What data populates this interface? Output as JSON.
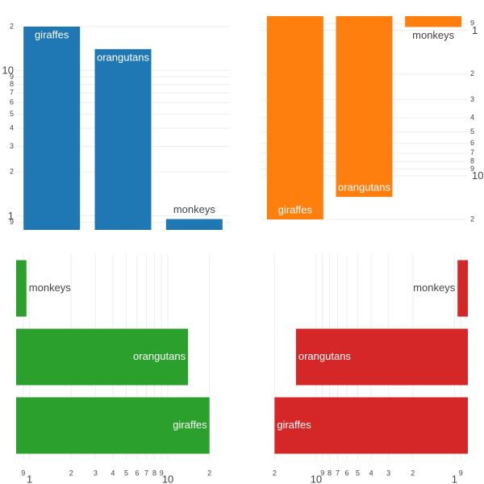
{
  "chart_data": [
    {
      "type": "bar",
      "orientation": "v",
      "reversed": false,
      "color": "#1f77b4",
      "grid": true,
      "categories": [
        "giraffes",
        "orangutans",
        "monkeys"
      ],
      "values": [
        20,
        14,
        0.95
      ],
      "ylim": [
        0.8,
        23.6
      ],
      "yticks": [
        {
          "value": 0.9,
          "label": "9"
        },
        1,
        2,
        3,
        4,
        5,
        6,
        7,
        8,
        9,
        10,
        {
          "value": 20,
          "label": "2"
        }
      ]
    },
    {
      "type": "bar",
      "orientation": "v",
      "reversed": true,
      "color": "#ff7f0e",
      "grid": true,
      "categories": [
        "giraffes",
        "orangutans",
        "monkeys"
      ],
      "values": [
        20,
        14,
        0.95
      ],
      "ylim": [
        0.8,
        23.6
      ],
      "yticks": [
        {
          "value": 0.9,
          "label": "9"
        },
        1,
        2,
        3,
        4,
        5,
        6,
        7,
        8,
        9,
        10,
        {
          "value": 20,
          "label": "2"
        }
      ]
    },
    {
      "type": "bar",
      "orientation": "h",
      "reversed": false,
      "color": "#2ca02c",
      "grid": true,
      "categories": [
        "giraffes",
        "orangutans",
        "monkeys"
      ],
      "values": [
        20,
        14,
        0.95
      ],
      "xlim": [
        0.8,
        23.6
      ],
      "xticks": [
        {
          "value": 0.9,
          "label": "9"
        },
        1,
        2,
        3,
        4,
        5,
        6,
        7,
        8,
        9,
        10,
        {
          "value": 20,
          "label": "2"
        }
      ]
    },
    {
      "type": "bar",
      "orientation": "h",
      "reversed": true,
      "color": "#d62728",
      "grid": true,
      "categories": [
        "giraffes",
        "orangutans",
        "monkeys"
      ],
      "values": [
        20,
        14,
        0.95
      ],
      "xlim": [
        0.8,
        23.6
      ],
      "xticks": [
        {
          "value": 0.9,
          "label": "9"
        },
        1,
        2,
        3,
        4,
        5,
        6,
        7,
        8,
        9,
        10,
        {
          "value": 20,
          "label": "2"
        }
      ]
    }
  ]
}
